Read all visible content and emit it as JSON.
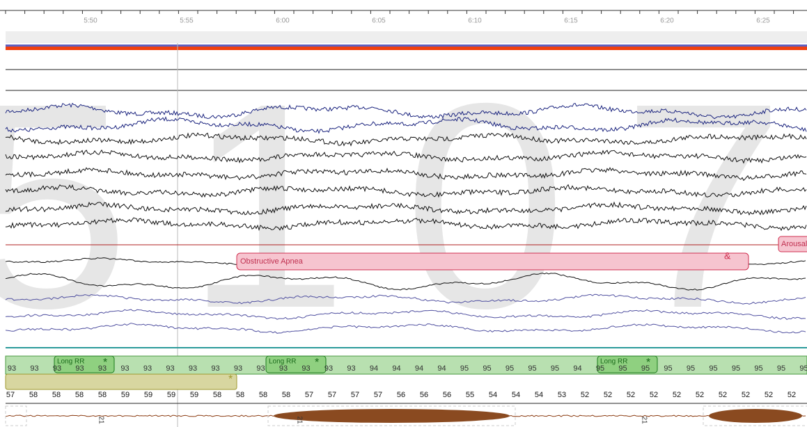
{
  "time_axis": [
    "5:50",
    "5:55",
    "6:00",
    "6:05",
    "6:10",
    "6:15",
    "6:20",
    "6:25"
  ],
  "watermark": "5107",
  "events": {
    "apnea": "Obstructive Apnea",
    "apnea_marker": "&",
    "arousal": "Arousal",
    "long_rr": [
      "Long RR",
      "Long RR",
      "Long RR"
    ]
  },
  "spo2": [
    "93",
    "93",
    "93",
    "93",
    "93",
    "93",
    "93",
    "93",
    "93",
    "93",
    "93",
    "93",
    "93",
    "93",
    "93",
    "93",
    "94",
    "94",
    "94",
    "94",
    "95",
    "95",
    "95",
    "95",
    "95",
    "94",
    "95",
    "95",
    "95",
    "95",
    "95",
    "95",
    "95",
    "95",
    "95",
    "95"
  ],
  "heart_rate": [
    "57",
    "58",
    "58",
    "58",
    "58",
    "59",
    "59",
    "59",
    "59",
    "58",
    "58",
    "58",
    "58",
    "57",
    "57",
    "57",
    "57",
    "56",
    "56",
    "56",
    "55",
    "54",
    "54",
    "54",
    "53",
    "52",
    "52",
    "52",
    "52",
    "52",
    "52",
    "52",
    "52",
    "52",
    "52"
  ],
  "page_markers": [
    "21",
    "21",
    "21"
  ]
}
